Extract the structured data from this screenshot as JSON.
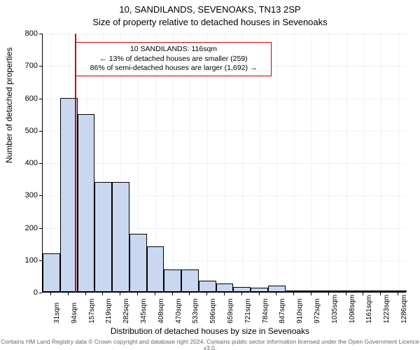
{
  "title_line1": "10, SANDILANDS, SEVENOAKS, TN13 2SP",
  "title_line2": "Size of property relative to detached houses in Sevenoaks",
  "chart": {
    "type": "histogram",
    "background_color": "#ffffff",
    "grid_color": "#eef1f6",
    "axis_color": "#000000",
    "bar_fill": "#c9d8f0",
    "bar_border": "#000000",
    "marker_color": "#cc0000",
    "ylabel": "Number of detached properties",
    "xlabel": "Distribution of detached houses by size in Sevenoaks",
    "ylim": [
      0,
      800
    ],
    "ytick_step": 100,
    "yticks": [
      0,
      100,
      200,
      300,
      400,
      500,
      600,
      700,
      800
    ],
    "xlim": [
      0,
      1317
    ],
    "xticks": [
      31,
      94,
      157,
      219,
      282,
      345,
      408,
      470,
      533,
      596,
      659,
      721,
      784,
      847,
      910,
      972,
      1035,
      1098,
      1161,
      1223,
      1286
    ],
    "xtick_unit": "sqm",
    "bar_width_data": 62.7,
    "bars": [
      {
        "x_start": 0,
        "value": 120
      },
      {
        "x_start": 62.7,
        "value": 600
      },
      {
        "x_start": 125.4,
        "value": 550
      },
      {
        "x_start": 188.1,
        "value": 340
      },
      {
        "x_start": 250.8,
        "value": 340
      },
      {
        "x_start": 313.5,
        "value": 180
      },
      {
        "x_start": 376.2,
        "value": 140
      },
      {
        "x_start": 438.9,
        "value": 70
      },
      {
        "x_start": 501.6,
        "value": 70
      },
      {
        "x_start": 564.3,
        "value": 35
      },
      {
        "x_start": 627.0,
        "value": 25
      },
      {
        "x_start": 689.7,
        "value": 15
      },
      {
        "x_start": 752.4,
        "value": 12
      },
      {
        "x_start": 815.1,
        "value": 20
      },
      {
        "x_start": 877.8,
        "value": 3
      },
      {
        "x_start": 940.5,
        "value": 4
      },
      {
        "x_start": 1003.2,
        "value": 3
      },
      {
        "x_start": 1065.9,
        "value": 2
      },
      {
        "x_start": 1128.6,
        "value": 2
      },
      {
        "x_start": 1191.3,
        "value": 2
      },
      {
        "x_start": 1254.0,
        "value": 2
      }
    ],
    "marker_x": 116,
    "annotation": {
      "line1": "10 SANDILANDS: 116sqm",
      "line2": "← 13% of detached houses are smaller (259)",
      "line3": "86% of semi-detached houses are larger (1,692) →",
      "border_color": "#cc0000",
      "background": "#ffffff",
      "fontsize": 10.5
    },
    "label_fontsize": 12,
    "tick_fontsize": 11
  },
  "footer": "Contains HM Land Registry data © Crown copyright and database right 2024. Contains public sector information licensed under the Open Government Licence v3.0."
}
